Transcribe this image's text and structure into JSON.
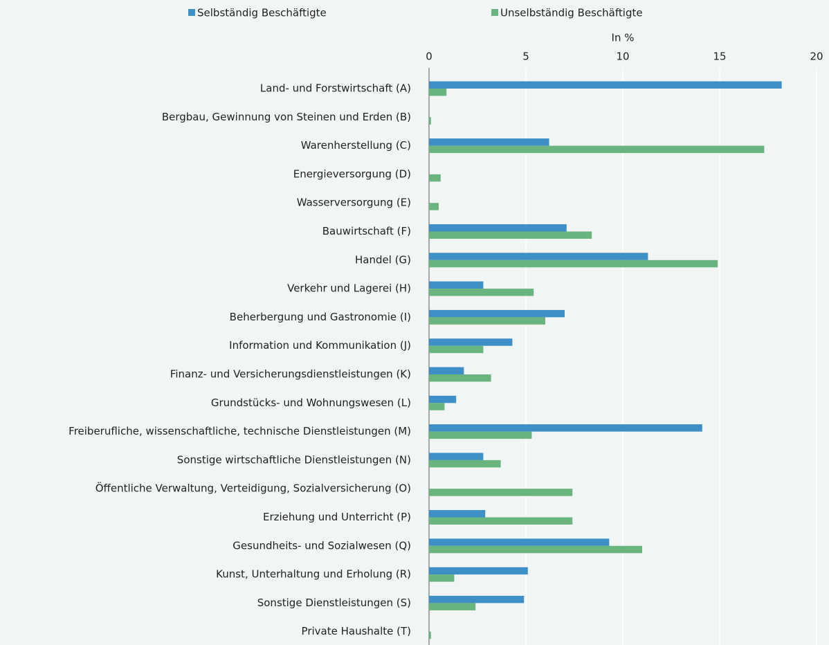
{
  "chart_data": {
    "type": "bar",
    "orientation": "horizontal",
    "x_label": "In %",
    "categories": [
      "Land- und Forstwirtschaft (A)",
      "Bergbau, Gewinnung von Steinen und Erden (B)",
      "Warenherstellung (C)",
      "Energieversorgung (D)",
      "Wasserversorgung (E)",
      "Bauwirtschaft (F)",
      "Handel (G)",
      "Verkehr und Lagerei (H)",
      "Beherbergung und Gastronomie (I)",
      "Information und Kommunikation (J)",
      "Finanz- und Versicherungsdienstleistungen (K)",
      "Grundstücks- und Wohnungswesen (L)",
      "Freiberufliche, wissenschaftliche, technische Dienstleistungen (M)",
      "Sonstige wirtschaftliche Dienstleistungen (N)",
      "Öffentliche Verwaltung, Verteidigung, Sozialversicherung (O)",
      "Erziehung und Unterricht (P)",
      "Gesundheits- und Sozialwesen (Q)",
      "Kunst, Unterhaltung und Erholung (R)",
      "Sonstige Dienstleistungen (S)",
      "Private Haushalte (T)"
    ],
    "series": [
      {
        "name": "Selbständig Beschäftigte",
        "color": "#3d8fc6",
        "values": [
          18.2,
          0,
          6.2,
          0,
          0,
          7.1,
          11.3,
          2.8,
          7.0,
          4.3,
          1.8,
          1.4,
          14.1,
          2.8,
          0,
          2.9,
          9.3,
          5.1,
          4.9,
          0
        ]
      },
      {
        "name": "Unselbständig Beschäftigte",
        "color": "#6ab47f",
        "values": [
          0.9,
          0.1,
          17.3,
          0.6,
          0.5,
          8.4,
          14.9,
          5.4,
          6.0,
          2.8,
          3.2,
          0.8,
          5.3,
          3.7,
          7.4,
          7.4,
          11.0,
          1.3,
          2.4,
          0.1
        ]
      }
    ],
    "xlim": [
      0,
      20
    ],
    "xticks": [
      0,
      5,
      10,
      15,
      20
    ],
    "grid": true,
    "legend": "top"
  }
}
